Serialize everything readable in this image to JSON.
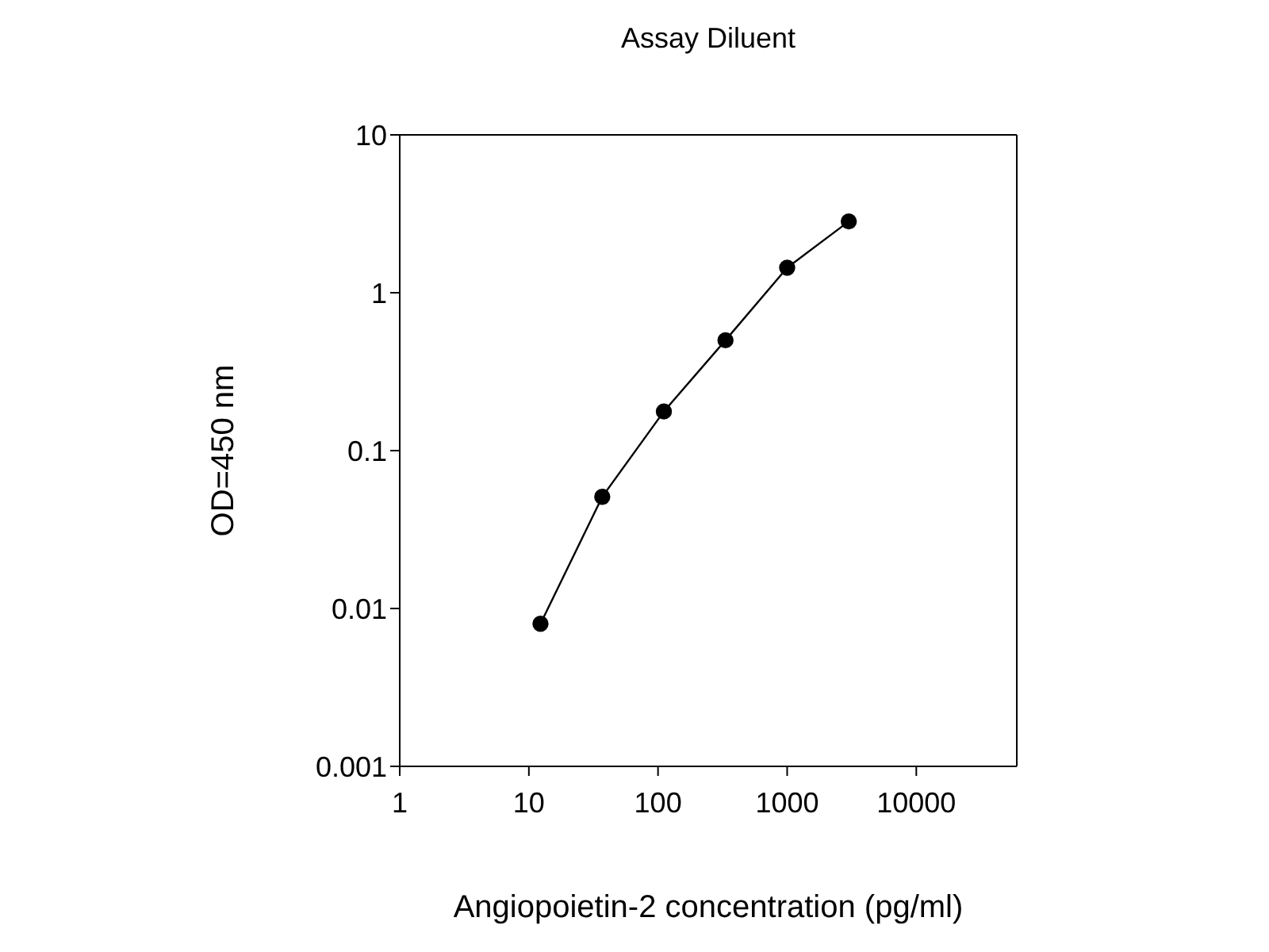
{
  "chart_data": {
    "type": "line",
    "title": "Assay Diluent",
    "xlabel": "Angiopoietin-2 concentration (pg/ml)",
    "ylabel": "OD=450 nm",
    "x": [
      12.3,
      37,
      111,
      333,
      1000,
      3000
    ],
    "series": [
      {
        "color": "#000000",
        "values": [
          0.008,
          0.051,
          0.177,
          0.5,
          1.44,
          2.83
        ]
      }
    ],
    "log": "xy",
    "xlim": [
      1,
      60000
    ],
    "xticks": [
      1,
      10,
      100,
      1000,
      10000
    ],
    "ylim": [
      0.001,
      10
    ],
    "yticks": [
      {
        "value": 0.001,
        "label": "0.001"
      },
      {
        "value": 0.01,
        "label": "0.01"
      },
      {
        "value": 0.1,
        "label": "0.1"
      },
      1,
      10
    ],
    "marker": "circle",
    "line_style": "solid",
    "grid": false
  }
}
